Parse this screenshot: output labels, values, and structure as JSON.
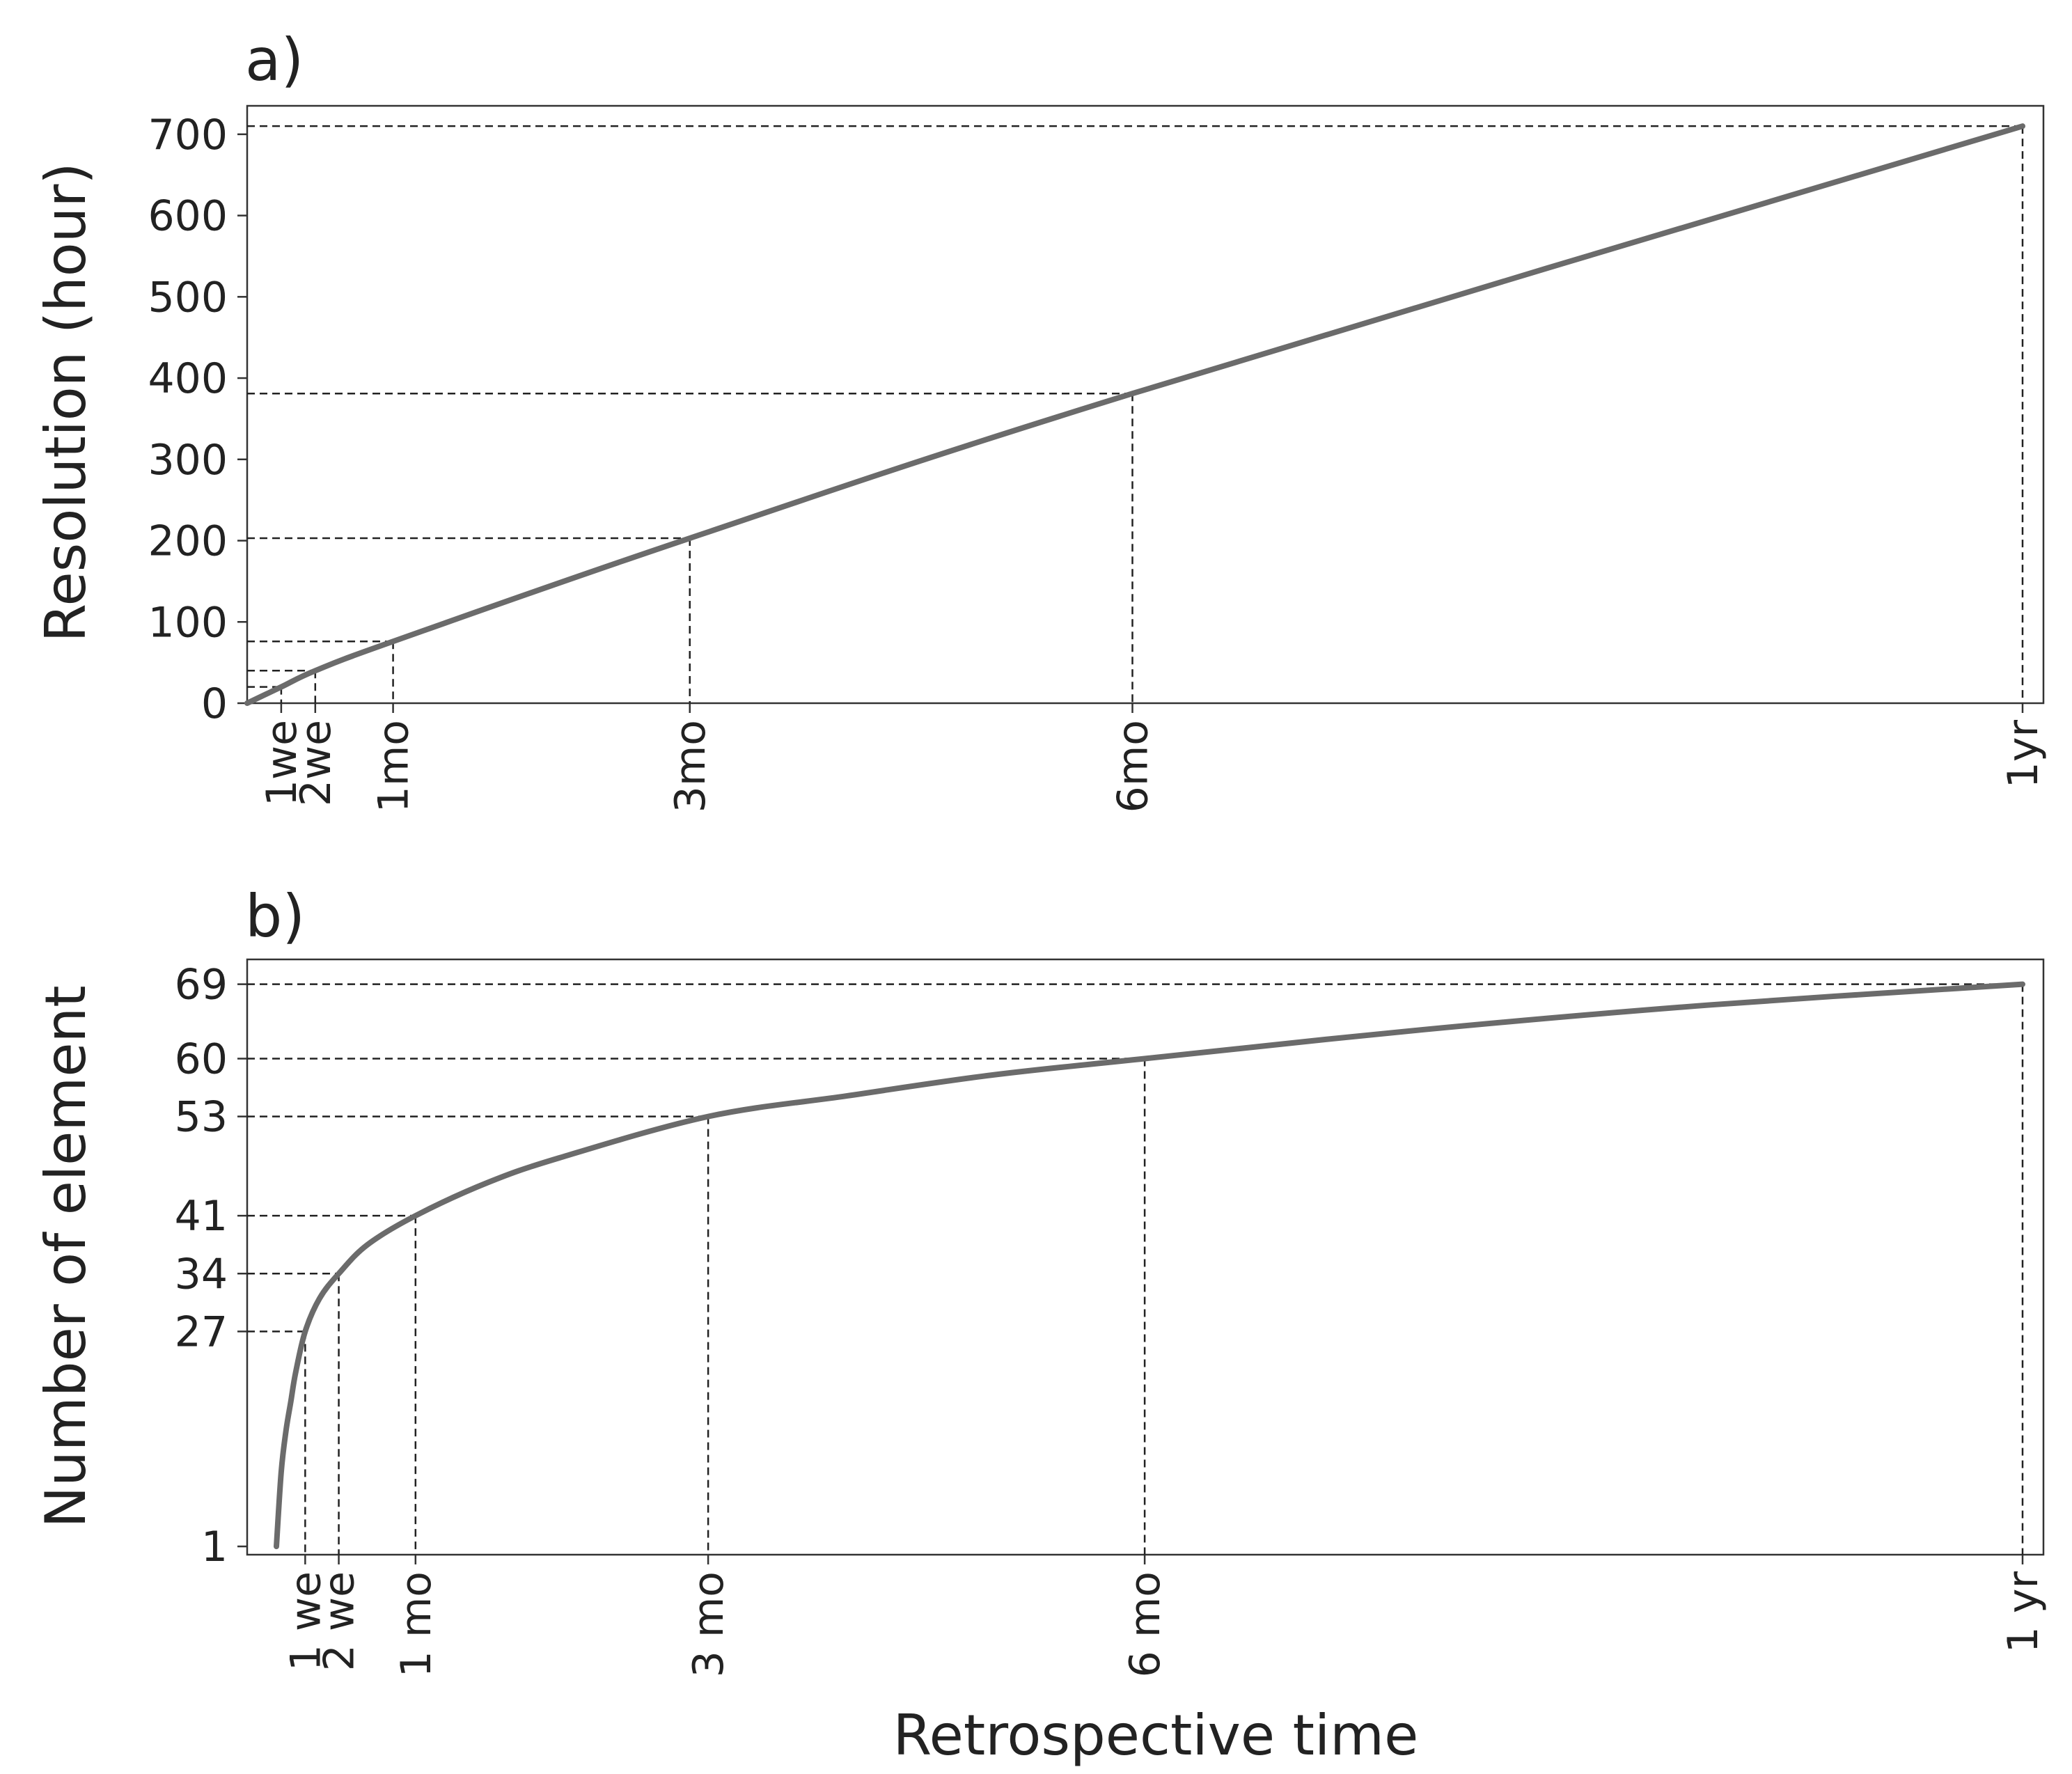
{
  "chart_data": [
    {
      "type": "line",
      "panel_label": "a)",
      "xlabel": "",
      "ylabel": "Resolution (hour)",
      "ylim": [
        0,
        735
      ],
      "yticks": [
        "0",
        "100",
        "200",
        "300",
        "400",
        "500",
        "600",
        "700"
      ],
      "grid": false,
      "legend": "none",
      "line_color": "#6b6b6b",
      "marked_points": [
        {
          "x_label": "1we",
          "x_days": 7,
          "y": 20
        },
        {
          "x_label": "2we",
          "x_days": 14,
          "y": 40
        },
        {
          "x_label": "1mo",
          "x_days": 30,
          "y": 76
        },
        {
          "x_label": "3mo",
          "x_days": 91,
          "y": 203
        },
        {
          "x_label": "6mo",
          "x_days": 182,
          "y": 381
        },
        {
          "x_label": "1yr",
          "x_days": 365,
          "y": 710
        }
      ],
      "series": [
        {
          "x_days": [
            0,
            7,
            14,
            30,
            91,
            182,
            365
          ],
          "y": [
            0,
            20,
            40,
            76,
            203,
            381,
            710
          ]
        }
      ]
    },
    {
      "type": "line",
      "panel_label": "b)",
      "xlabel": "Retrospective time",
      "ylabel": "Number of element",
      "ylim": [
        0,
        72
      ],
      "yticks": [
        "1",
        "27",
        "34",
        "41",
        "53",
        "60",
        "69"
      ],
      "grid": false,
      "legend": "none",
      "line_color": "#6b6b6b",
      "marked_points": [
        {
          "x_label": "1 we",
          "x_days": 7,
          "y": 27
        },
        {
          "x_label": "2 we",
          "x_days": 14,
          "y": 34
        },
        {
          "x_label": "1 mo",
          "x_days": 30,
          "y": 41
        },
        {
          "x_label": "3 mo",
          "x_days": 91,
          "y": 53
        },
        {
          "x_label": "6 mo",
          "x_days": 182,
          "y": 60
        },
        {
          "x_label": "1 yr",
          "x_days": 365,
          "y": 69
        }
      ],
      "series": [
        {
          "x_days": [
            1,
            2,
            3,
            4,
            5,
            7,
            10,
            14,
            20,
            30,
            45,
            60,
            91,
            120,
            150,
            182,
            240,
            300,
            365
          ],
          "y": [
            1,
            10,
            15,
            18.5,
            22,
            27,
            31,
            34,
            37.5,
            41,
            45,
            48,
            53,
            55.5,
            58,
            60,
            63.5,
            66.5,
            69
          ]
        }
      ]
    }
  ]
}
